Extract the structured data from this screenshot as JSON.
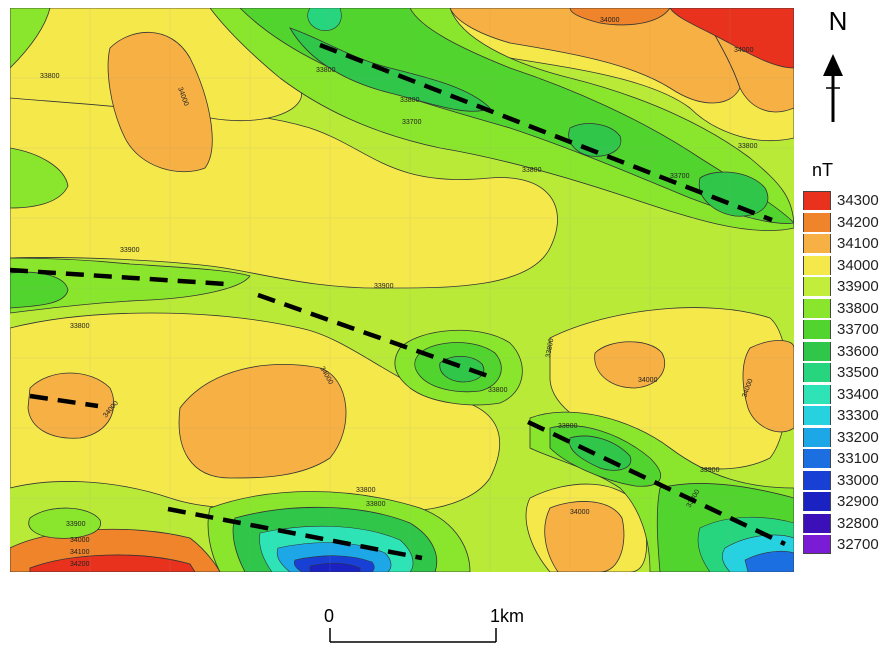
{
  "north_arrow": {
    "label": "N"
  },
  "legend": {
    "unit": "nT",
    "items": [
      {
        "label": "34300",
        "color": "#e8321e"
      },
      {
        "label": "34200",
        "color": "#f0842a"
      },
      {
        "label": "34100",
        "color": "#f6b043"
      },
      {
        "label": "34000",
        "color": "#f4e84a"
      },
      {
        "label": "33900",
        "color": "#c2ed3a"
      },
      {
        "label": "33800",
        "color": "#8ae62c"
      },
      {
        "label": "33700",
        "color": "#52d42e"
      },
      {
        "label": "33600",
        "color": "#2fc64a"
      },
      {
        "label": "33500",
        "color": "#26d57e"
      },
      {
        "label": "33400",
        "color": "#2ee3b6"
      },
      {
        "label": "33300",
        "color": "#27d2e0"
      },
      {
        "label": "33200",
        "color": "#1ea7e6"
      },
      {
        "label": "33100",
        "color": "#1c6fe0"
      },
      {
        "label": "33000",
        "color": "#1940d4"
      },
      {
        "label": "32900",
        "color": "#1a22c2"
      },
      {
        "label": "32800",
        "color": "#3b10b8"
      },
      {
        "label": "32700",
        "color": "#7a1bd6"
      }
    ]
  },
  "scale_bar": {
    "start_label": "0",
    "end_label": "1km"
  },
  "contour_labels": [
    "34000",
    "33800",
    "33900",
    "33700",
    "34100",
    "33600",
    "33500",
    "33400",
    "34200",
    "34300"
  ],
  "lineaments": {
    "count": 9,
    "style": "dashed black"
  }
}
